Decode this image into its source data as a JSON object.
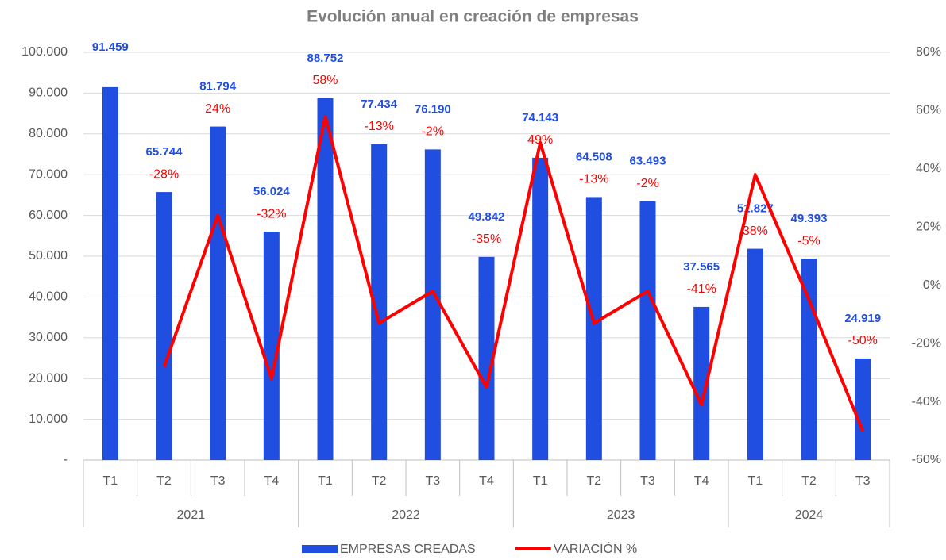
{
  "chart_data": {
    "type": "combo",
    "title": "Evolución anual en creación de empresas",
    "categories": [
      "T1",
      "T2",
      "T3",
      "T4",
      "T1",
      "T2",
      "T3",
      "T4",
      "T1",
      "T2",
      "T3",
      "T4",
      "T1",
      "T2",
      "T3"
    ],
    "groups": [
      "2021",
      "2022",
      "2023",
      "2024"
    ],
    "series": [
      {
        "name": "EMPRESAS CREADAS",
        "type": "bar",
        "color": "#1f4ee0",
        "values": [
          91459,
          65744,
          81794,
          56024,
          88752,
          77434,
          76190,
          49842,
          74143,
          64508,
          63493,
          37565,
          51827,
          49393,
          24919
        ],
        "value_labels": [
          "91.459",
          "65.744",
          "81.794",
          "56.024",
          "88.752",
          "77.434",
          "76.190",
          "49.842",
          "74.143",
          "64.508",
          "63.493",
          "37.565",
          "51.827",
          "49.393",
          "24.919"
        ]
      },
      {
        "name": "VARIACIÓN %",
        "type": "line",
        "axis": "y2",
        "color": "#ff0000",
        "values": [
          null,
          -28,
          24,
          -32,
          58,
          -13,
          -2,
          -35,
          49,
          -13,
          -2,
          -41,
          38,
          -5,
          -50
        ],
        "value_labels": [
          null,
          "-28%",
          "24%",
          "-32%",
          "58%",
          "-13%",
          "-2%",
          "-35%",
          "49%",
          "-13%",
          "-2%",
          "-41%",
          "38%",
          "-5%",
          "-50%"
        ]
      }
    ],
    "ylim": [
      0,
      100000
    ],
    "yticks": [
      {
        "value": 0,
        "label": "-"
      },
      {
        "value": 10000,
        "label": "10.000"
      },
      {
        "value": 20000,
        "label": "20.000"
      },
      {
        "value": 30000,
        "label": "30.000"
      },
      {
        "value": 40000,
        "label": "40.000"
      },
      {
        "value": 50000,
        "label": "50.000"
      },
      {
        "value": 60000,
        "label": "60.000"
      },
      {
        "value": 70000,
        "label": "70.000"
      },
      {
        "value": 80000,
        "label": "80.000"
      },
      {
        "value": 90000,
        "label": "90.000"
      },
      {
        "value": 100000,
        "label": "100.000"
      }
    ],
    "y2lim": [
      -60,
      80
    ],
    "y2ticks": [
      {
        "value": -60,
        "label": "-60%"
      },
      {
        "value": -40,
        "label": "-40%"
      },
      {
        "value": -20,
        "label": "-20%"
      },
      {
        "value": 0,
        "label": "0%"
      },
      {
        "value": 20,
        "label": "20%"
      },
      {
        "value": 40,
        "label": "40%"
      },
      {
        "value": 60,
        "label": "60%"
      },
      {
        "value": 80,
        "label": "80%"
      }
    ],
    "grid": true,
    "legend": "bottom"
  }
}
